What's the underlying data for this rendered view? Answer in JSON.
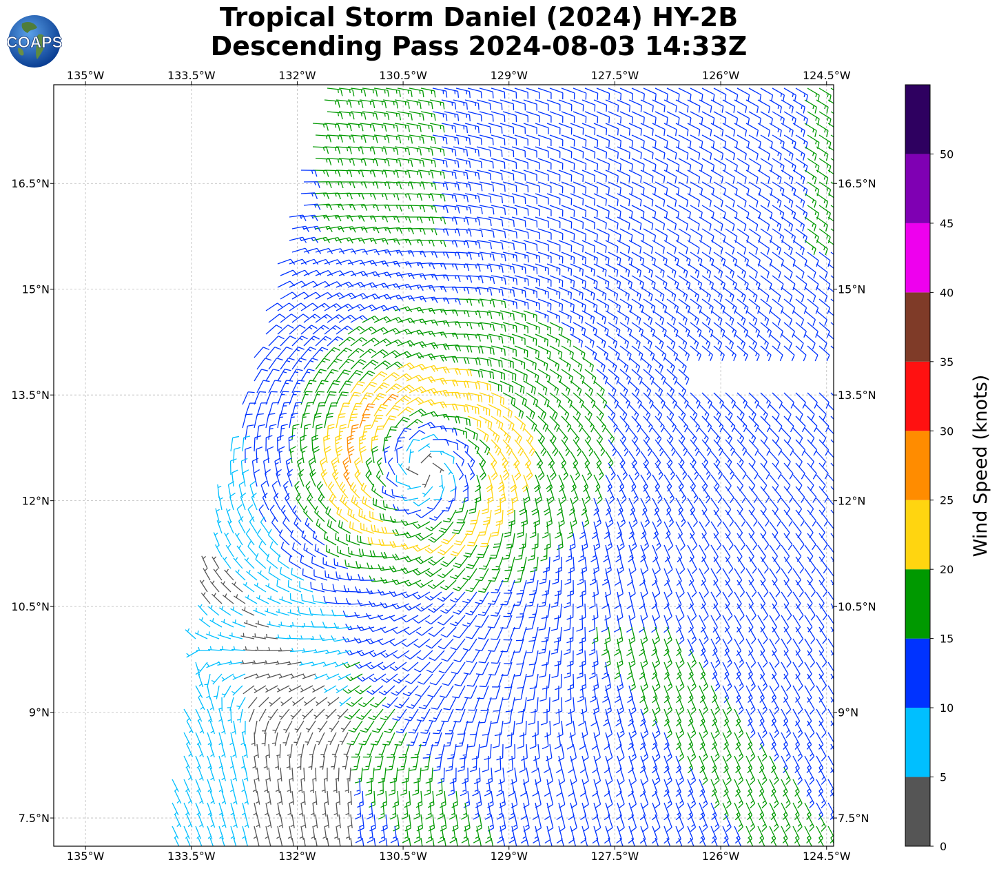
{
  "title_line1": "Tropical Storm Daniel (2024) HY-2B",
  "title_line2": "Descending Pass 2024-08-03 14:33Z",
  "logo_text": "COAPS",
  "colors": {
    "bin_0_5": "#555555",
    "bin_5_10": "#00bfff",
    "bin_10_15": "#0033ff",
    "bin_15_20": "#009900",
    "bin_20_25": "#ffd510",
    "bin_25_30": "#ff8c00",
    "bin_30_35": "#ff1111",
    "bin_35_40": "#7f3b28",
    "bin_40_45": "#ee00ee",
    "bin_45_50": "#7f00b3",
    "bin_50_55": "#2e0060"
  },
  "chart_data": {
    "type": "wind-barb-map",
    "map": {
      "lon_range": [
        -135.45,
        -124.4
      ],
      "lat_range": [
        7.1,
        17.9
      ],
      "lon_ticks": [
        "135°W",
        "133.5°W",
        "132°W",
        "130.5°W",
        "129°W",
        "127.5°W",
        "126°W",
        "124.5°W"
      ],
      "lat_ticks": [
        "7.5°N",
        "9°N",
        "10.5°N",
        "12°N",
        "13.5°N",
        "15°N",
        "16.5°N"
      ],
      "grid": true,
      "storm_center": {
        "lon": -130.2,
        "lat": 12.45
      }
    },
    "colorbar": {
      "label": "Wind Speed (knots)",
      "ticks": [
        "0",
        "5",
        "10",
        "15",
        "20",
        "25",
        "30",
        "35",
        "40",
        "45",
        "50"
      ],
      "range": [
        0,
        55
      ],
      "bins": [
        {
          "from": 0,
          "to": 5,
          "color": "#555555"
        },
        {
          "from": 5,
          "to": 10,
          "color": "#00bfff"
        },
        {
          "from": 10,
          "to": 15,
          "color": "#0033ff"
        },
        {
          "from": 15,
          "to": 20,
          "color": "#009900"
        },
        {
          "from": 20,
          "to": 25,
          "color": "#ffd510"
        },
        {
          "from": 25,
          "to": 30,
          "color": "#ff8c00"
        },
        {
          "from": 30,
          "to": 35,
          "color": "#ff1111"
        },
        {
          "from": 35,
          "to": 40,
          "color": "#7f3b28"
        },
        {
          "from": 40,
          "to": 45,
          "color": "#ee00ee"
        },
        {
          "from": 45,
          "to": 50,
          "color": "#7f00b3"
        },
        {
          "from": 50,
          "to": 55,
          "color": "#2e0060"
        }
      ]
    }
  }
}
